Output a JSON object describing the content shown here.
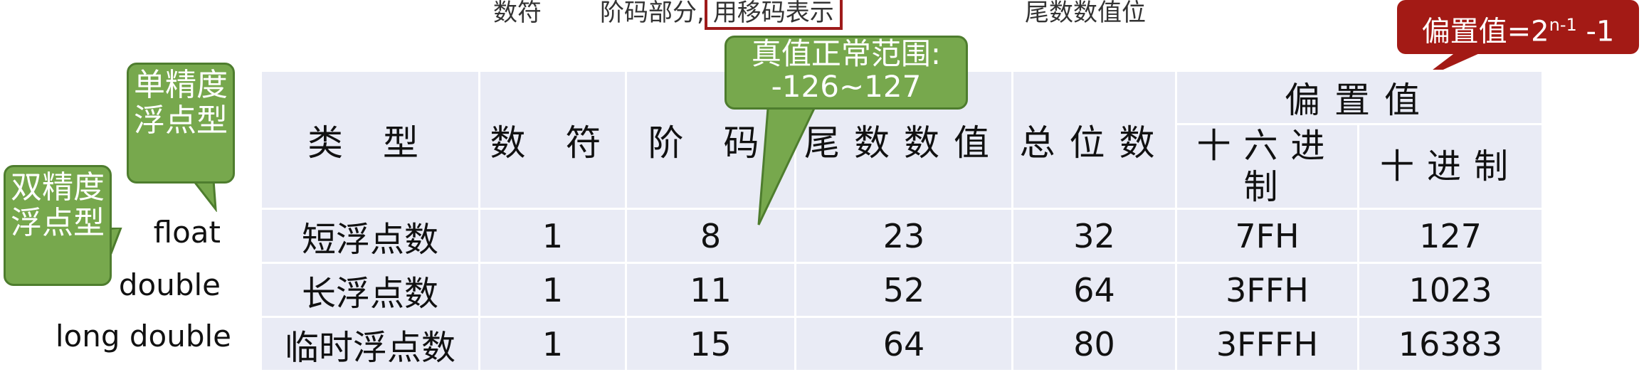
{
  "header": {
    "sign_label": "数符",
    "exponent_label_prefix": "阶码部分,",
    "exponent_note": "用移码表示",
    "mantissa_label": "尾数数值位"
  },
  "callouts": {
    "bias_formula_prefix": "偏置值=2",
    "bias_formula_exp": "n-1",
    "bias_formula_suffix": " -1",
    "range_title": "真值正常范围:",
    "range_value": "-126~127",
    "single_precision": "单精度浮点型",
    "double_precision": "双精度浮点型"
  },
  "table": {
    "headers": {
      "type": "类 型",
      "sign": "数 符",
      "exponent": "阶 码",
      "mantissa": "尾数数值",
      "total_bits": "总位数",
      "bias": "偏置值",
      "hex": "十六进制",
      "decimal": "十进制"
    },
    "rows": [
      {
        "label": "float",
        "type": "短浮点数",
        "sign": "1",
        "exponent": "8",
        "mantissa": "23",
        "total": "32",
        "hex": "7FH",
        "decimal": "127"
      },
      {
        "label": "double",
        "type": "长浮点数",
        "sign": "1",
        "exponent": "11",
        "mantissa": "52",
        "total": "64",
        "hex": "3FFH",
        "decimal": "1023"
      },
      {
        "label": "long double",
        "type": "临时浮点数",
        "sign": "1",
        "exponent": "15",
        "mantissa": "64",
        "total": "80",
        "hex": "3FFFH",
        "decimal": "16383"
      }
    ]
  },
  "colors": {
    "table_fill": "#e9ebf5",
    "callout_green": "#77a84d",
    "callout_red": "#a31a15",
    "highlight_border": "#9e1b1b"
  }
}
